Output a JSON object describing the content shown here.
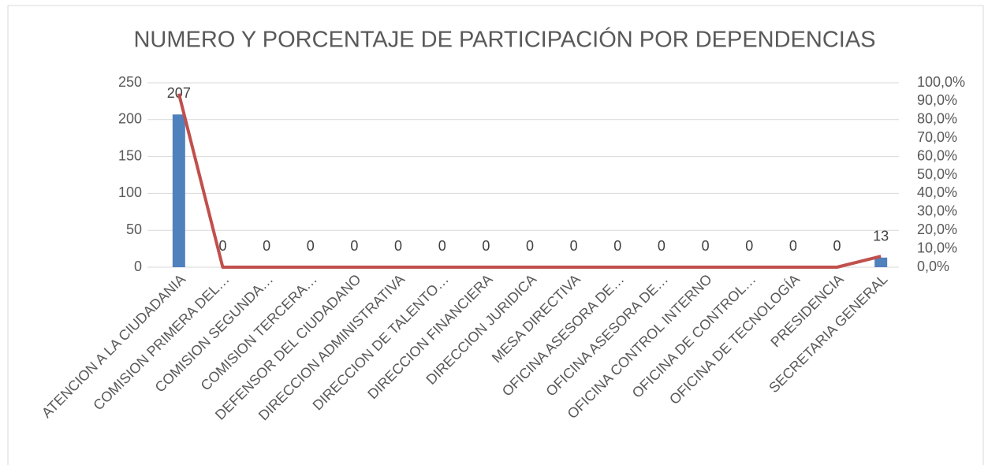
{
  "chart_data": {
    "type": "combo",
    "title": "NUMERO Y PORCENTAJE DE PARTICIPACIÓN POR DEPENDENCIAS",
    "categories": [
      "ATENCION A LA CIUDADANIA",
      "COMISION PRIMERA DEL…",
      "COMISION SEGUNDA…",
      "COMISION TERCERA…",
      "DEFENSOR DEL CIUDADANO",
      "DIRECCION ADMINISTRATIVA",
      "DIRECCION DE TALENTO…",
      "DIRECCION FINANCIERA",
      "DIRECCION JURIDICA",
      "MESA DIRECTIVA",
      "OFICINA ASESORA DE…",
      "OFICINA ASESORA DE…",
      "OFICINA CONTROL INTERNO",
      "OFICINA DE CONTROL…",
      "OFICINA DE TECNOLOGÍA",
      "PRESIDENCIA",
      "SECRETARIA GENERAL"
    ],
    "series": [
      {
        "type": "bar",
        "color": "#4f81bd",
        "values": [
          207,
          0,
          0,
          0,
          0,
          0,
          0,
          0,
          0,
          0,
          0,
          0,
          0,
          0,
          0,
          0,
          13
        ]
      },
      {
        "type": "line",
        "axis": "y2",
        "color": "#c0504d",
        "values": [
          94.1,
          0,
          0,
          0,
          0,
          0,
          0,
          0,
          0,
          0,
          0,
          0,
          0,
          0,
          0,
          0,
          5.9
        ]
      }
    ],
    "ylim": [
      0,
      250
    ],
    "yticks": [
      0,
      50,
      100,
      150,
      200,
      250
    ],
    "y2lim": [
      0,
      100
    ],
    "y2ticks": [
      {
        "value": 0,
        "label": "0,0%"
      },
      {
        "value": 10,
        "label": "10,0%"
      },
      {
        "value": 20,
        "label": "20,0%"
      },
      {
        "value": 30,
        "label": "30,0%"
      },
      {
        "value": 40,
        "label": "40,0%"
      },
      {
        "value": 50,
        "label": "50,0%"
      },
      {
        "value": 60,
        "label": "60,0%"
      },
      {
        "value": 70,
        "label": "70,0%"
      },
      {
        "value": 80,
        "label": "80,0%"
      },
      {
        "value": 90,
        "label": "90,0%"
      },
      {
        "value": 100,
        "label": "100,0%"
      }
    ],
    "grid": true
  }
}
